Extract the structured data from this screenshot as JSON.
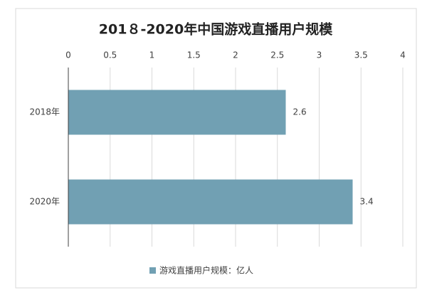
{
  "chart_data": {
    "type": "bar",
    "title": "201８-2020年中国游戏直播用户规模",
    "categories": [
      "2018年",
      "2020年"
    ],
    "series": [
      {
        "name": "游戏直播用户规模：亿人",
        "color": "#71a0b3",
        "values": [
          2.6,
          3.4
        ]
      }
    ],
    "xlim": [
      0,
      4
    ],
    "xticks": [
      0,
      0.5,
      1,
      1.5,
      2,
      2.5,
      3,
      3.5,
      4
    ],
    "grid": true,
    "legend": "bottom"
  }
}
